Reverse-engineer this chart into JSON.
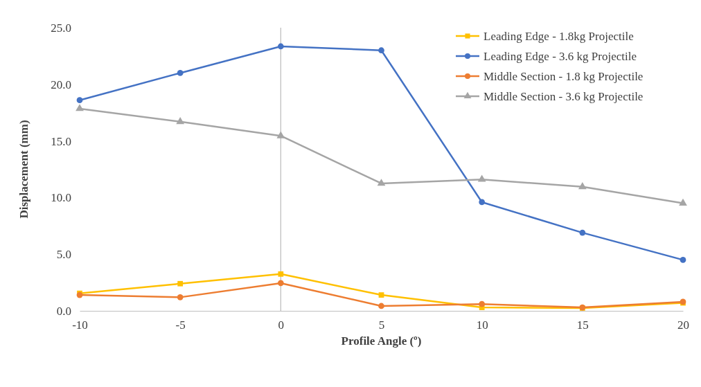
{
  "chart_data": {
    "type": "line",
    "xlabel": "Profile Angle (º)",
    "ylabel": "Displacement (mm)",
    "x": [
      -10,
      -5,
      0,
      5,
      10,
      15,
      20
    ],
    "xlim": [
      -10,
      20
    ],
    "xticks": [
      -10,
      -5,
      0,
      5,
      10,
      15,
      20
    ],
    "ylim": [
      0,
      25
    ],
    "yticks": [
      {
        "value": 0,
        "label": "0.0"
      },
      {
        "value": 5,
        "label": "5.0"
      },
      {
        "value": 10,
        "label": "10.0"
      },
      {
        "value": 15,
        "label": "15.0"
      },
      {
        "value": 20,
        "label": "20.0"
      },
      {
        "value": 25,
        "label": "25.0"
      }
    ],
    "grid": false,
    "legend": "top right",
    "ref_lines": [
      {
        "axis": "x",
        "value": 0,
        "color": "#bfbfbf"
      }
    ],
    "series": [
      {
        "name": "Leading Edge - 1.8kg Projectile",
        "color": "#ffc000",
        "marker": "square",
        "values": [
          1.55,
          2.4,
          3.25,
          1.4,
          0.3,
          0.25,
          0.7
        ]
      },
      {
        "name": "Leading Edge - 3.6 kg Projectile",
        "color": "#4472c4",
        "marker": "circle",
        "values": [
          18.6,
          21.0,
          23.35,
          23.0,
          9.6,
          6.9,
          4.5
        ]
      },
      {
        "name": "Middle Section - 1.8 kg Projectile",
        "color": "#ed7d31",
        "marker": "circle",
        "values": [
          1.4,
          1.2,
          2.45,
          0.43,
          0.6,
          0.3,
          0.8
        ]
      },
      {
        "name": "Middle Section - 3.6 kg Projectile",
        "color": "#a5a5a5",
        "marker": "triangle",
        "values": [
          17.85,
          16.7,
          15.45,
          11.25,
          11.6,
          10.95,
          9.5
        ]
      }
    ]
  }
}
